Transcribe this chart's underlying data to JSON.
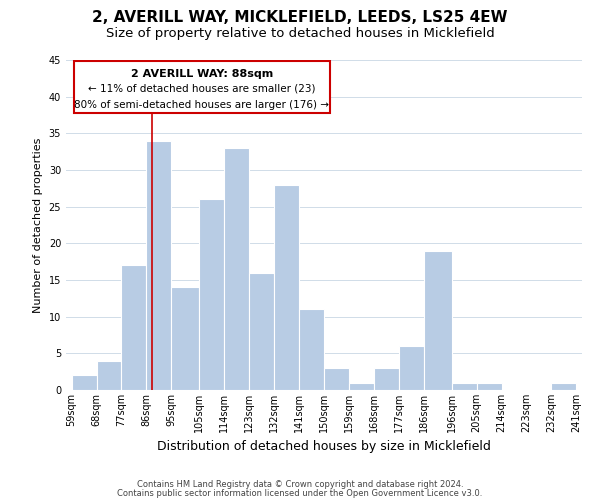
{
  "title": "2, AVERILL WAY, MICKLEFIELD, LEEDS, LS25 4EW",
  "subtitle": "Size of property relative to detached houses in Micklefield",
  "xlabel": "Distribution of detached houses by size in Micklefield",
  "ylabel": "Number of detached properties",
  "bar_edges": [
    59,
    68,
    77,
    86,
    95,
    105,
    114,
    123,
    132,
    141,
    150,
    159,
    168,
    177,
    186,
    196,
    205,
    214,
    223,
    232,
    241
  ],
  "bar_heights": [
    2,
    4,
    17,
    34,
    14,
    26,
    33,
    16,
    28,
    11,
    3,
    1,
    3,
    6,
    19,
    1,
    1,
    0,
    0,
    1
  ],
  "bar_color": "#b8cce4",
  "bar_edgecolor": "#ffffff",
  "property_line_x": 88,
  "property_line_color": "#cc0000",
  "ylim": [
    0,
    45
  ],
  "annotation_title": "2 AVERILL WAY: 88sqm",
  "annotation_line1": "← 11% of detached houses are smaller (23)",
  "annotation_line2": "80% of semi-detached houses are larger (176) →",
  "annotation_box_color": "#ffffff",
  "annotation_box_edgecolor": "#cc0000",
  "tick_labels": [
    "59sqm",
    "68sqm",
    "77sqm",
    "86sqm",
    "95sqm",
    "105sqm",
    "114sqm",
    "123sqm",
    "132sqm",
    "141sqm",
    "150sqm",
    "159sqm",
    "168sqm",
    "177sqm",
    "186sqm",
    "196sqm",
    "205sqm",
    "214sqm",
    "223sqm",
    "232sqm",
    "241sqm"
  ],
  "footer_line1": "Contains HM Land Registry data © Crown copyright and database right 2024.",
  "footer_line2": "Contains public sector information licensed under the Open Government Licence v3.0.",
  "background_color": "#ffffff",
  "grid_color": "#d0dce8",
  "title_fontsize": 11,
  "subtitle_fontsize": 9.5,
  "ylabel_fontsize": 8,
  "xlabel_fontsize": 9,
  "tick_fontsize": 7,
  "footer_fontsize": 6,
  "annot_title_fontsize": 8,
  "annot_text_fontsize": 7.5
}
